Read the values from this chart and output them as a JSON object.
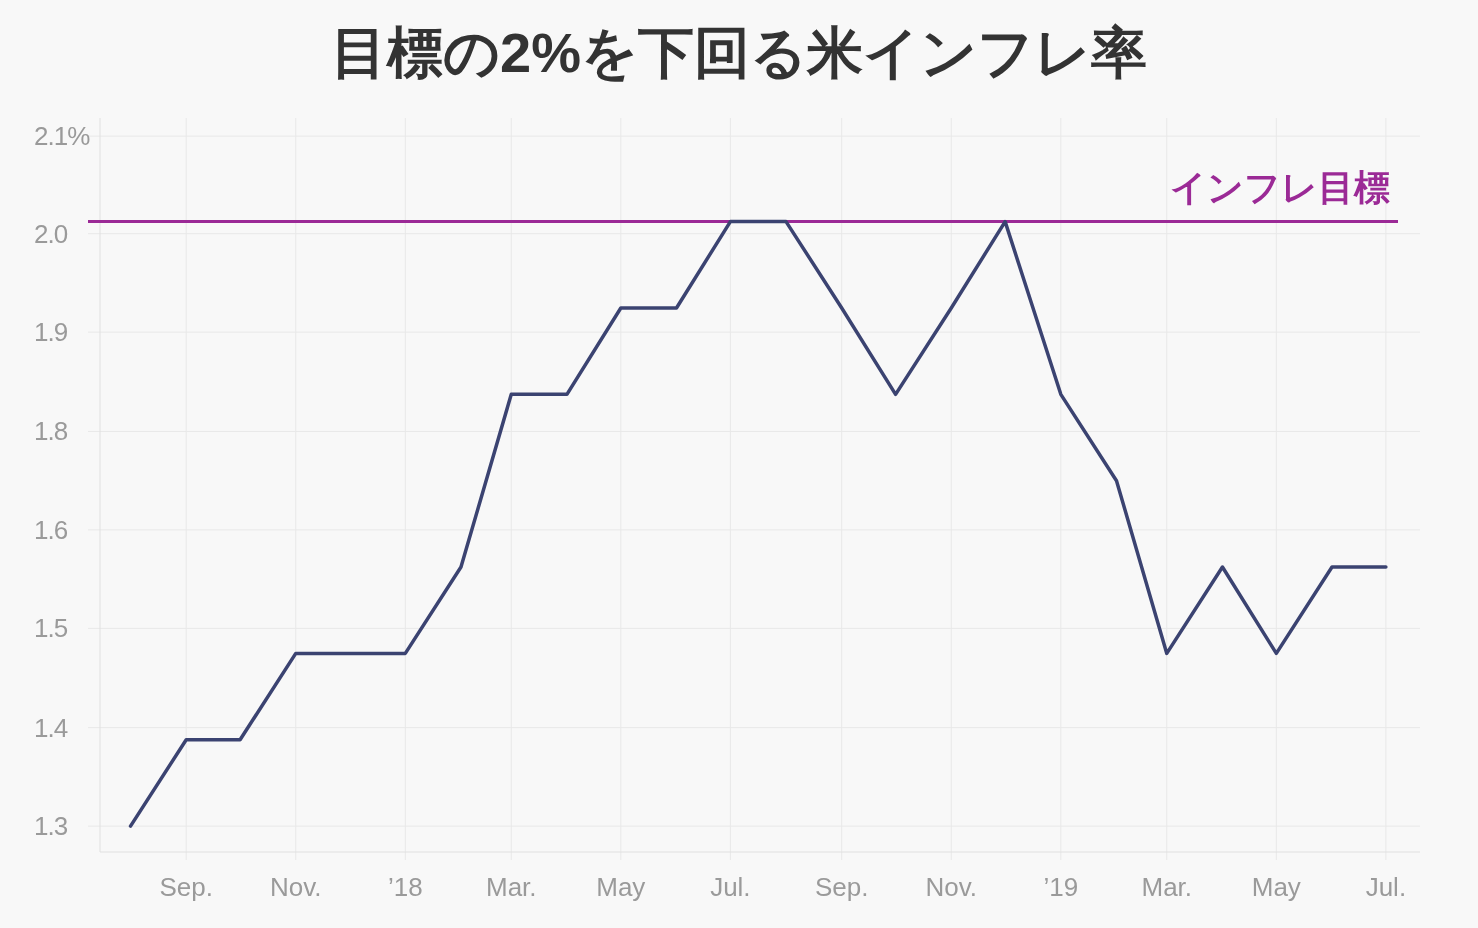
{
  "chart_data": {
    "type": "line",
    "title": "目標の2%を下回る米インフレ率",
    "x": [
      "2017-08",
      "2017-09",
      "2017-10",
      "2017-11",
      "2017-12",
      "2018-01",
      "2018-02",
      "2018-03",
      "2018-04",
      "2018-05",
      "2018-06",
      "2018-07",
      "2018-08",
      "2018-09",
      "2018-10",
      "2018-11",
      "2018-12",
      "2019-01",
      "2019-02",
      "2019-03",
      "2019-04",
      "2019-05",
      "2019-06",
      "2019-07"
    ],
    "series": [
      {
        "color": "#3b4371",
        "values": [
          1.3,
          1.4,
          1.4,
          1.5,
          1.5,
          1.5,
          1.6,
          1.8,
          1.8,
          1.9,
          1.9,
          2.0,
          2.0,
          1.9,
          1.8,
          1.9,
          2.0,
          1.8,
          1.7,
          1.5,
          1.6,
          1.5,
          1.6,
          1.6
        ]
      }
    ],
    "xlim": [
      "2017-07-15",
      "2019-07-20"
    ],
    "ylim": [
      1.27,
      2.12
    ],
    "xticks": [
      {
        "value": "2017-09",
        "label": "Sep."
      },
      {
        "value": "2017-11",
        "label": "Nov."
      },
      {
        "value": "2018-01",
        "label": "’18"
      },
      {
        "value": "2018-03",
        "label": "Mar."
      },
      {
        "value": "2018-05",
        "label": "May"
      },
      {
        "value": "2018-07",
        "label": "Jul."
      },
      {
        "value": "2018-09",
        "label": "Sep."
      },
      {
        "value": "2018-11",
        "label": "Nov."
      },
      {
        "value": "2019-01",
        "label": "’19"
      },
      {
        "value": "2019-03",
        "label": "Mar."
      },
      {
        "value": "2019-05",
        "label": "May"
      },
      {
        "value": "2019-07",
        "label": "Jul."
      }
    ],
    "yticks": [
      1.3,
      {
        "value": 1.414,
        "label": "1.4"
      },
      {
        "value": 1.529,
        "label": "1.5"
      },
      {
        "value": 1.643,
        "label": "1.6"
      },
      {
        "value": 1.757,
        "label": "1.8"
      },
      {
        "value": 1.872,
        "label": "1.9"
      },
      {
        "value": 1.986,
        "label": "2.0"
      },
      {
        "value": 2.099,
        "label": "2.1%"
      }
    ],
    "grid": true,
    "ref_lines": [
      {
        "axis": "y",
        "value": 2.0,
        "label": "インフレ目標",
        "color": "#9b2a96"
      }
    ]
  }
}
